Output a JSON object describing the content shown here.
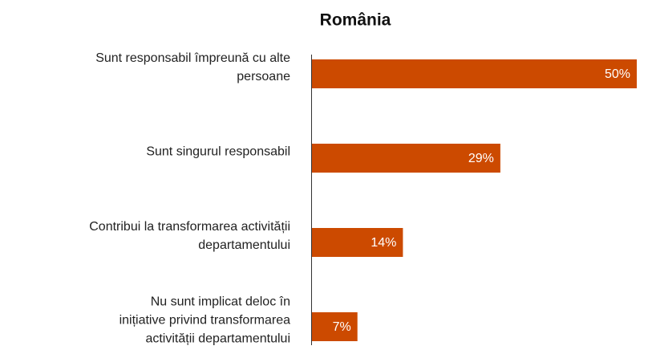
{
  "chart_data": {
    "type": "bar",
    "orientation": "horizontal",
    "title": "România",
    "categories": [
      "Sunt responsabil împreună cu alte\npersoane",
      "Sunt singurul responsabil",
      "Contribui la transformarea activității\ndepartamentului",
      "Nu sunt implicat deloc în\ninițiative privind transformarea\nactivității departamentului"
    ],
    "values": [
      50,
      29,
      14,
      7
    ],
    "value_labels": [
      "50%",
      "29%",
      "14%",
      "7%"
    ],
    "color": "#cc4a00"
  }
}
